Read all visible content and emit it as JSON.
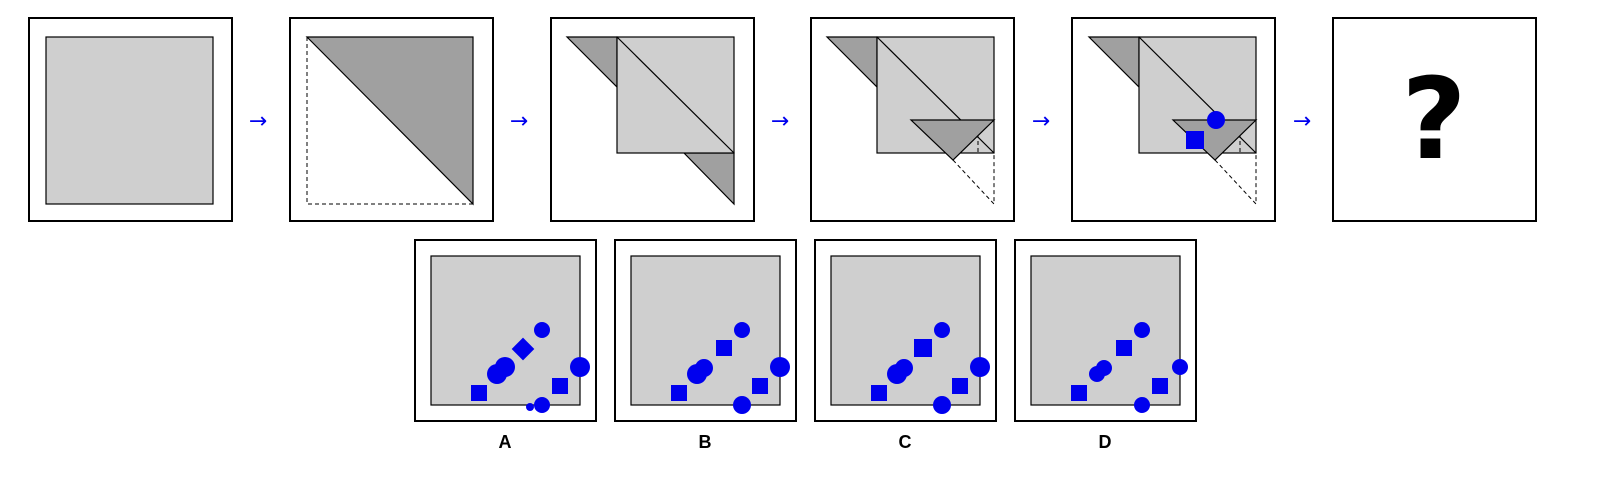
{
  "puzzle": {
    "question_mark": "?",
    "arrow_glyph": "→"
  },
  "options": [
    {
      "label": "A"
    },
    {
      "label": "B"
    },
    {
      "label": "C"
    },
    {
      "label": "D"
    }
  ],
  "colors": {
    "paper": "#cfcfcf",
    "fold": "#a0a0a0",
    "marker": "#0000ee",
    "frame": "#000000",
    "arrow": "#0000ee"
  }
}
